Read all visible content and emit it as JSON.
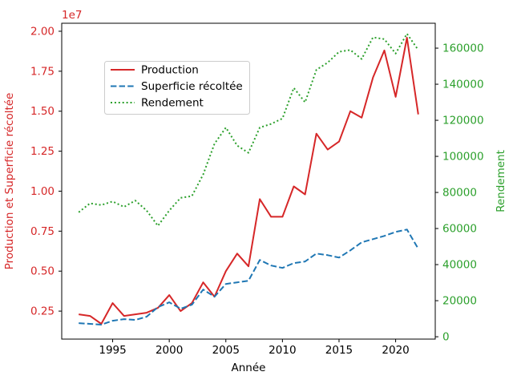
{
  "chart_data": {
    "type": "line",
    "title": "",
    "xlabel": "Année",
    "ylabel_left": "Production et Superficie récoltée",
    "ylabel_right": "Rendement",
    "offset_text_left": "1e7",
    "legend_position": "upper left",
    "axis_colors": {
      "left": "#d62728",
      "right": "#2ca02c",
      "x": "#000000",
      "spine": "#000000"
    },
    "xlim": [
      1990.5,
      2023.5
    ],
    "ylim_left": [
      750000,
      20500000
    ],
    "ylim_right": [
      -1300,
      173800
    ],
    "xticks": {
      "values": [
        1995,
        2000,
        2005,
        2010,
        2015,
        2020
      ],
      "labels": [
        "1995",
        "2000",
        "2005",
        "2010",
        "2015",
        "2020"
      ]
    },
    "yticks_left": {
      "values": [
        2500000,
        5000000,
        7500000,
        10000000,
        12500000,
        15000000,
        17500000,
        20000000
      ],
      "labels": [
        "0.25",
        "0.50",
        "0.75",
        "1.00",
        "1.25",
        "1.50",
        "1.75",
        "2.00"
      ]
    },
    "yticks_right": {
      "values": [
        0,
        20000,
        40000,
        60000,
        80000,
        100000,
        120000,
        140000,
        160000
      ],
      "labels": [
        "0",
        "20000",
        "40000",
        "60000",
        "80000",
        "100000",
        "120000",
        "140000",
        "160000"
      ]
    },
    "x": [
      1992,
      1993,
      1994,
      1995,
      1996,
      1997,
      1998,
      1999,
      2000,
      2001,
      2002,
      2003,
      2004,
      2005,
      2006,
      2007,
      2008,
      2009,
      2010,
      2011,
      2012,
      2013,
      2014,
      2015,
      2016,
      2017,
      2018,
      2019,
      2020,
      2021,
      2022
    ],
    "series": [
      {
        "name": "Production",
        "axis": "left",
        "style": "solid",
        "color": "#d62728",
        "values": [
          2300000,
          2200000,
          1700000,
          3000000,
          2200000,
          2300000,
          2400000,
          2700000,
          3500000,
          2500000,
          3000000,
          4300000,
          3400000,
          5000000,
          6100000,
          5300000,
          9500000,
          8400000,
          8400000,
          10300000,
          9800000,
          13600000,
          12600000,
          13100000,
          15000000,
          14600000,
          17100000,
          18800000,
          15900000,
          19600000,
          14800000
        ]
      },
      {
        "name": "Superficie récoltée",
        "axis": "left",
        "style": "dashed",
        "color": "#1f77b4",
        "values": [
          1750000,
          1700000,
          1650000,
          1900000,
          2000000,
          1950000,
          2150000,
          2750000,
          3050000,
          2650000,
          2900000,
          3850000,
          3400000,
          4200000,
          4300000,
          4400000,
          5700000,
          5350000,
          5200000,
          5500000,
          5600000,
          6100000,
          6000000,
          5850000,
          6300000,
          6800000,
          7000000,
          7200000,
          7450000,
          7600000,
          6400000
        ]
      },
      {
        "name": "Rendement",
        "axis": "right",
        "style": "dotted",
        "color": "#2ca02c",
        "values": [
          69000,
          74000,
          73000,
          75000,
          72000,
          75500,
          70000,
          61500,
          70000,
          77000,
          78000,
          90000,
          107000,
          116000,
          106000,
          102000,
          116000,
          118000,
          121000,
          138000,
          130000,
          148000,
          152000,
          158000,
          159000,
          154000,
          166000,
          165000,
          157000,
          168000,
          159000
        ]
      }
    ]
  }
}
